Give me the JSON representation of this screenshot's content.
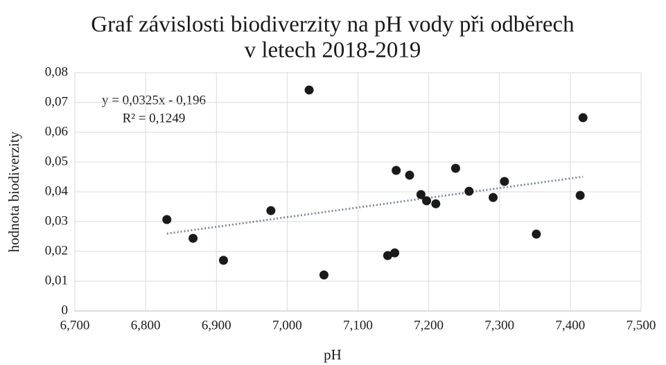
{
  "chart_data": {
    "type": "scatter",
    "title": "Graf závislosti biodiverzity na pH vody při odběrech",
    "subtitle": "v letech 2018-2019",
    "x_label": "pH",
    "y_label": "hodnota biodiverzity",
    "color": "#1a1a1a",
    "grid": true,
    "x": [
      6.83,
      6.867,
      6.91,
      6.977,
      7.031,
      7.052,
      7.142,
      7.152,
      7.154,
      7.173,
      7.189,
      7.197,
      7.21,
      7.238,
      7.257,
      7.291,
      7.307,
      7.352,
      7.414,
      7.418
    ],
    "values": [
      0.0307,
      0.0244,
      0.017,
      0.0337,
      0.0742,
      0.0121,
      0.0186,
      0.0195,
      0.0472,
      0.0456,
      0.0391,
      0.037,
      0.036,
      0.0479,
      0.0402,
      0.0381,
      0.0435,
      0.0258,
      0.0388,
      0.0649
    ],
    "xlim": [
      6.7,
      7.5
    ],
    "xticks": [
      {
        "value": 6.7,
        "label": "6,700"
      },
      {
        "value": 6.8,
        "label": "6,800"
      },
      {
        "value": 6.9,
        "label": "6,900"
      },
      {
        "value": 7.0,
        "label": "7,000"
      },
      {
        "value": 7.1,
        "label": "7,100"
      },
      {
        "value": 7.2,
        "label": "7,200"
      },
      {
        "value": 7.3,
        "label": "7,300"
      },
      {
        "value": 7.4,
        "label": "7,400"
      },
      {
        "value": 7.5,
        "label": "7,500"
      }
    ],
    "ylim": [
      0,
      0.08
    ],
    "yticks": [
      0,
      {
        "value": 0.01,
        "label": "0,01"
      },
      {
        "value": 0.02,
        "label": "0,02"
      },
      {
        "value": 0.03,
        "label": "0,03"
      },
      {
        "value": 0.04,
        "label": "0,04"
      },
      {
        "value": 0.05,
        "label": "0,05"
      },
      {
        "value": 0.06,
        "label": "0,06"
      },
      {
        "value": 0.07,
        "label": "0,07"
      },
      {
        "value": 0.08,
        "label": "0,08"
      }
    ],
    "trendline": {
      "slope": 0.0325,
      "intercept": -0.196,
      "color": "#7f8b99",
      "equation": "y = 0,0325x - 0,196",
      "r2": "R² = 0,1249"
    }
  }
}
